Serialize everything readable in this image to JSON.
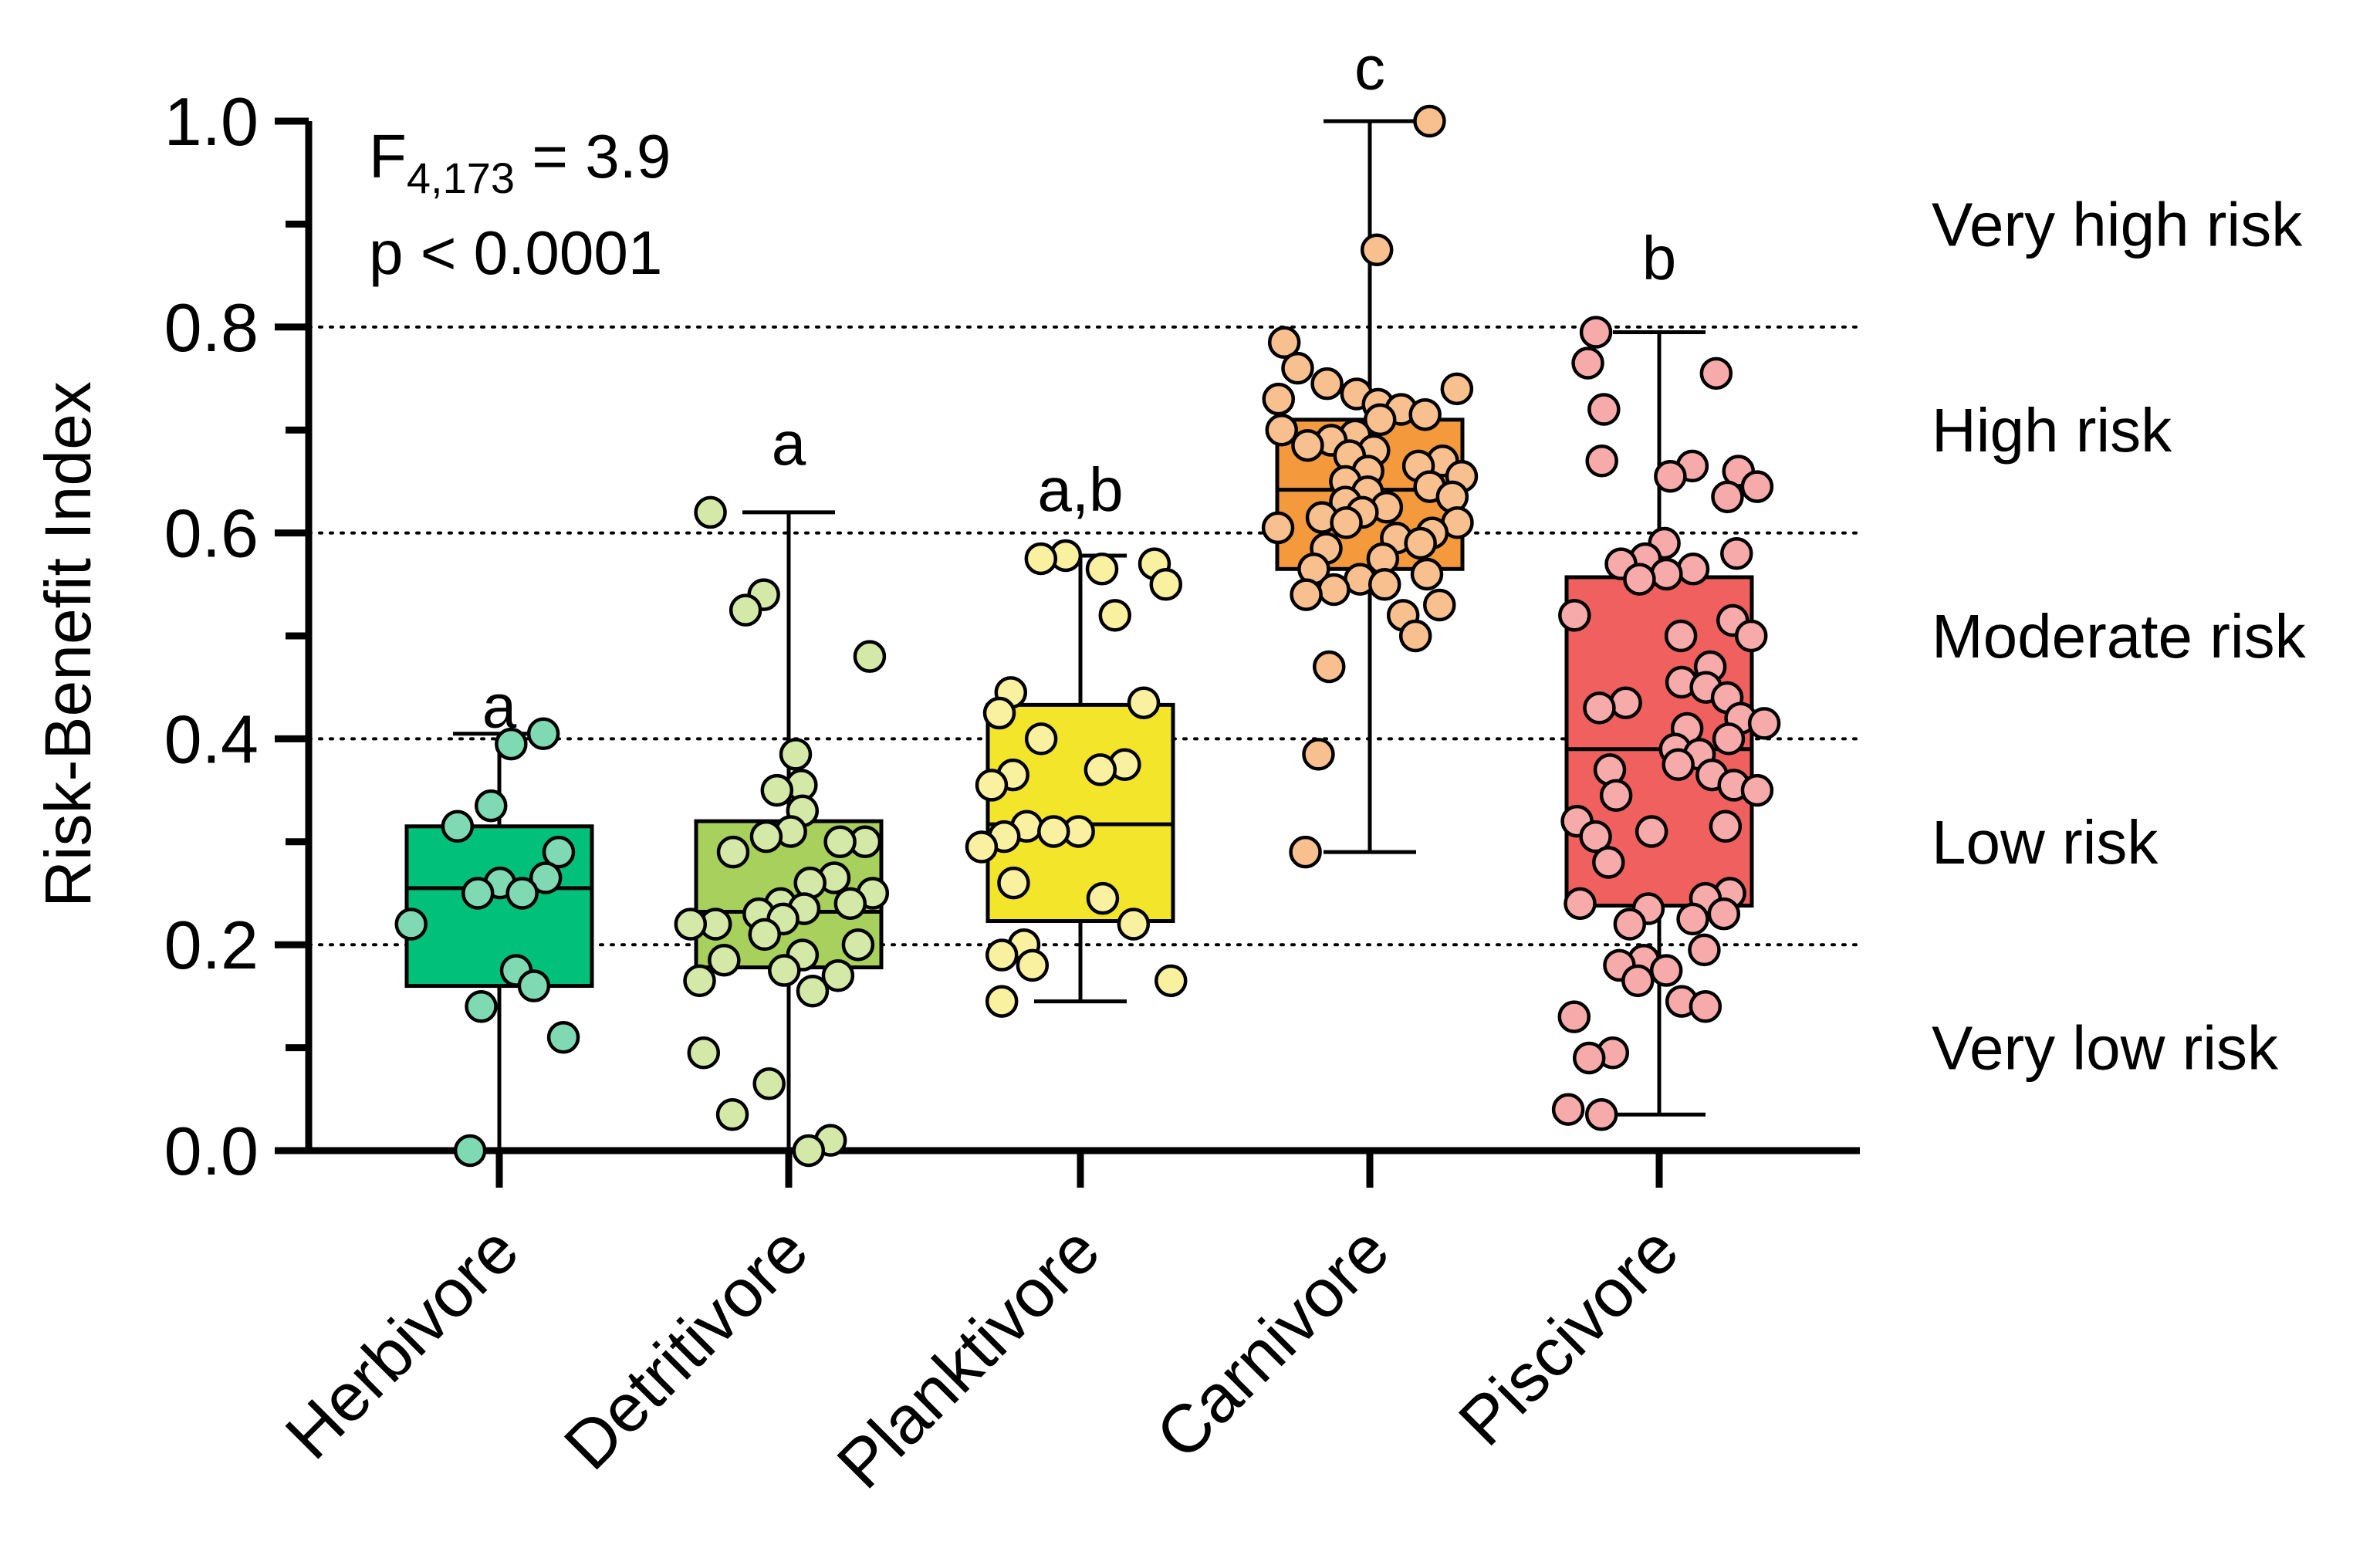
{
  "chart_data": {
    "type": "box",
    "ylabel": "Risk-Benefit Index",
    "ylim": [
      0,
      1.0
    ],
    "yticks": [
      "0.0",
      "0.2",
      "0.4",
      "0.6",
      "0.8",
      "1.0"
    ],
    "ytick_values": [
      0,
      0.2,
      0.4,
      0.6,
      0.8,
      1.0
    ],
    "reference_lines": [
      0.2,
      0.4,
      0.6,
      0.8
    ],
    "stats": {
      "F_main": "F",
      "F_sub": "4,173",
      "F_value": " = 3.9",
      "p": "p < 0.0001"
    },
    "risk_categories": [
      {
        "label": "Very high risk",
        "y": 0.9
      },
      {
        "label": "High risk",
        "y": 0.7
      },
      {
        "label": "Moderate risk",
        "y": 0.5
      },
      {
        "label": "Low risk",
        "y": 0.3
      },
      {
        "label": "Very low risk",
        "y": 0.1
      }
    ],
    "groups": [
      {
        "name": "Herbivore",
        "letter": "a",
        "box_color": "#00c07a",
        "point_color": "#7fd9b3",
        "min": 0.0,
        "q1": 0.16,
        "median": 0.255,
        "q3": 0.315,
        "max": 0.405,
        "letter_y": 0.43,
        "points": [
          0.405,
          0.395,
          0.335,
          0.315,
          0.29,
          0.265,
          0.26,
          0.25,
          0.25,
          0.22,
          0.175,
          0.16,
          0.14,
          0.11,
          0.0
        ]
      },
      {
        "name": "Detritivore",
        "letter": "a",
        "box_color": "#a8d05c",
        "point_color": "#d4e8a8",
        "min": 0.0,
        "q1": 0.178,
        "median": 0.232,
        "q3": 0.32,
        "max": 0.62,
        "letter_y": 0.685,
        "points": [
          0.62,
          0.54,
          0.525,
          0.48,
          0.385,
          0.355,
          0.35,
          0.33,
          0.31,
          0.305,
          0.3,
          0.3,
          0.29,
          0.265,
          0.26,
          0.25,
          0.24,
          0.24,
          0.235,
          0.23,
          0.225,
          0.22,
          0.22,
          0.21,
          0.2,
          0.19,
          0.185,
          0.175,
          0.17,
          0.165,
          0.155,
          0.095,
          0.065,
          0.035,
          0.01,
          0.0
        ]
      },
      {
        "name": "Planktivore",
        "letter": "a,b",
        "box_color": "#f3e52a",
        "point_color": "#f9f0a0",
        "min": 0.145,
        "q1": 0.223,
        "median": 0.317,
        "q3": 0.433,
        "max": 0.578,
        "letter_y": 0.64,
        "points": [
          0.578,
          0.575,
          0.57,
          0.565,
          0.55,
          0.52,
          0.445,
          0.435,
          0.425,
          0.4,
          0.375,
          0.37,
          0.365,
          0.355,
          0.315,
          0.31,
          0.31,
          0.305,
          0.295,
          0.26,
          0.245,
          0.22,
          0.2,
          0.19,
          0.18,
          0.165,
          0.145
        ]
      },
      {
        "name": "Carnivore",
        "letter": "c",
        "box_color": "#f59a3c",
        "point_color": "#f9c08f",
        "min": 0.29,
        "q1": 0.565,
        "median": 0.642,
        "q3": 0.71,
        "max": 1.0,
        "letter_y": 1.05,
        "points": [
          1.0,
          0.875,
          0.785,
          0.76,
          0.745,
          0.74,
          0.735,
          0.73,
          0.725,
          0.72,
          0.715,
          0.71,
          0.7,
          0.695,
          0.69,
          0.685,
          0.68,
          0.675,
          0.67,
          0.665,
          0.66,
          0.655,
          0.65,
          0.645,
          0.64,
          0.635,
          0.63,
          0.625,
          0.62,
          0.615,
          0.61,
          0.61,
          0.605,
          0.6,
          0.595,
          0.59,
          0.585,
          0.575,
          0.565,
          0.56,
          0.555,
          0.55,
          0.545,
          0.54,
          0.53,
          0.52,
          0.5,
          0.47,
          0.385,
          0.29
        ]
      },
      {
        "name": "Piscivore",
        "letter": "b",
        "box_color": "#f0605f",
        "point_color": "#f6aaaa",
        "min": 0.035,
        "q1": 0.238,
        "median": 0.39,
        "q3": 0.557,
        "max": 0.795,
        "letter_y": 0.865,
        "points": [
          0.795,
          0.765,
          0.755,
          0.72,
          0.67,
          0.665,
          0.66,
          0.655,
          0.645,
          0.635,
          0.59,
          0.58,
          0.575,
          0.57,
          0.565,
          0.56,
          0.555,
          0.52,
          0.515,
          0.5,
          0.5,
          0.47,
          0.455,
          0.45,
          0.44,
          0.435,
          0.43,
          0.42,
          0.415,
          0.41,
          0.4,
          0.39,
          0.385,
          0.375,
          0.37,
          0.365,
          0.355,
          0.35,
          0.345,
          0.32,
          0.315,
          0.31,
          0.305,
          0.28,
          0.25,
          0.245,
          0.24,
          0.235,
          0.23,
          0.225,
          0.22,
          0.195,
          0.185,
          0.18,
          0.175,
          0.165,
          0.145,
          0.14,
          0.13,
          0.095,
          0.09,
          0.04,
          0.035
        ]
      }
    ]
  }
}
